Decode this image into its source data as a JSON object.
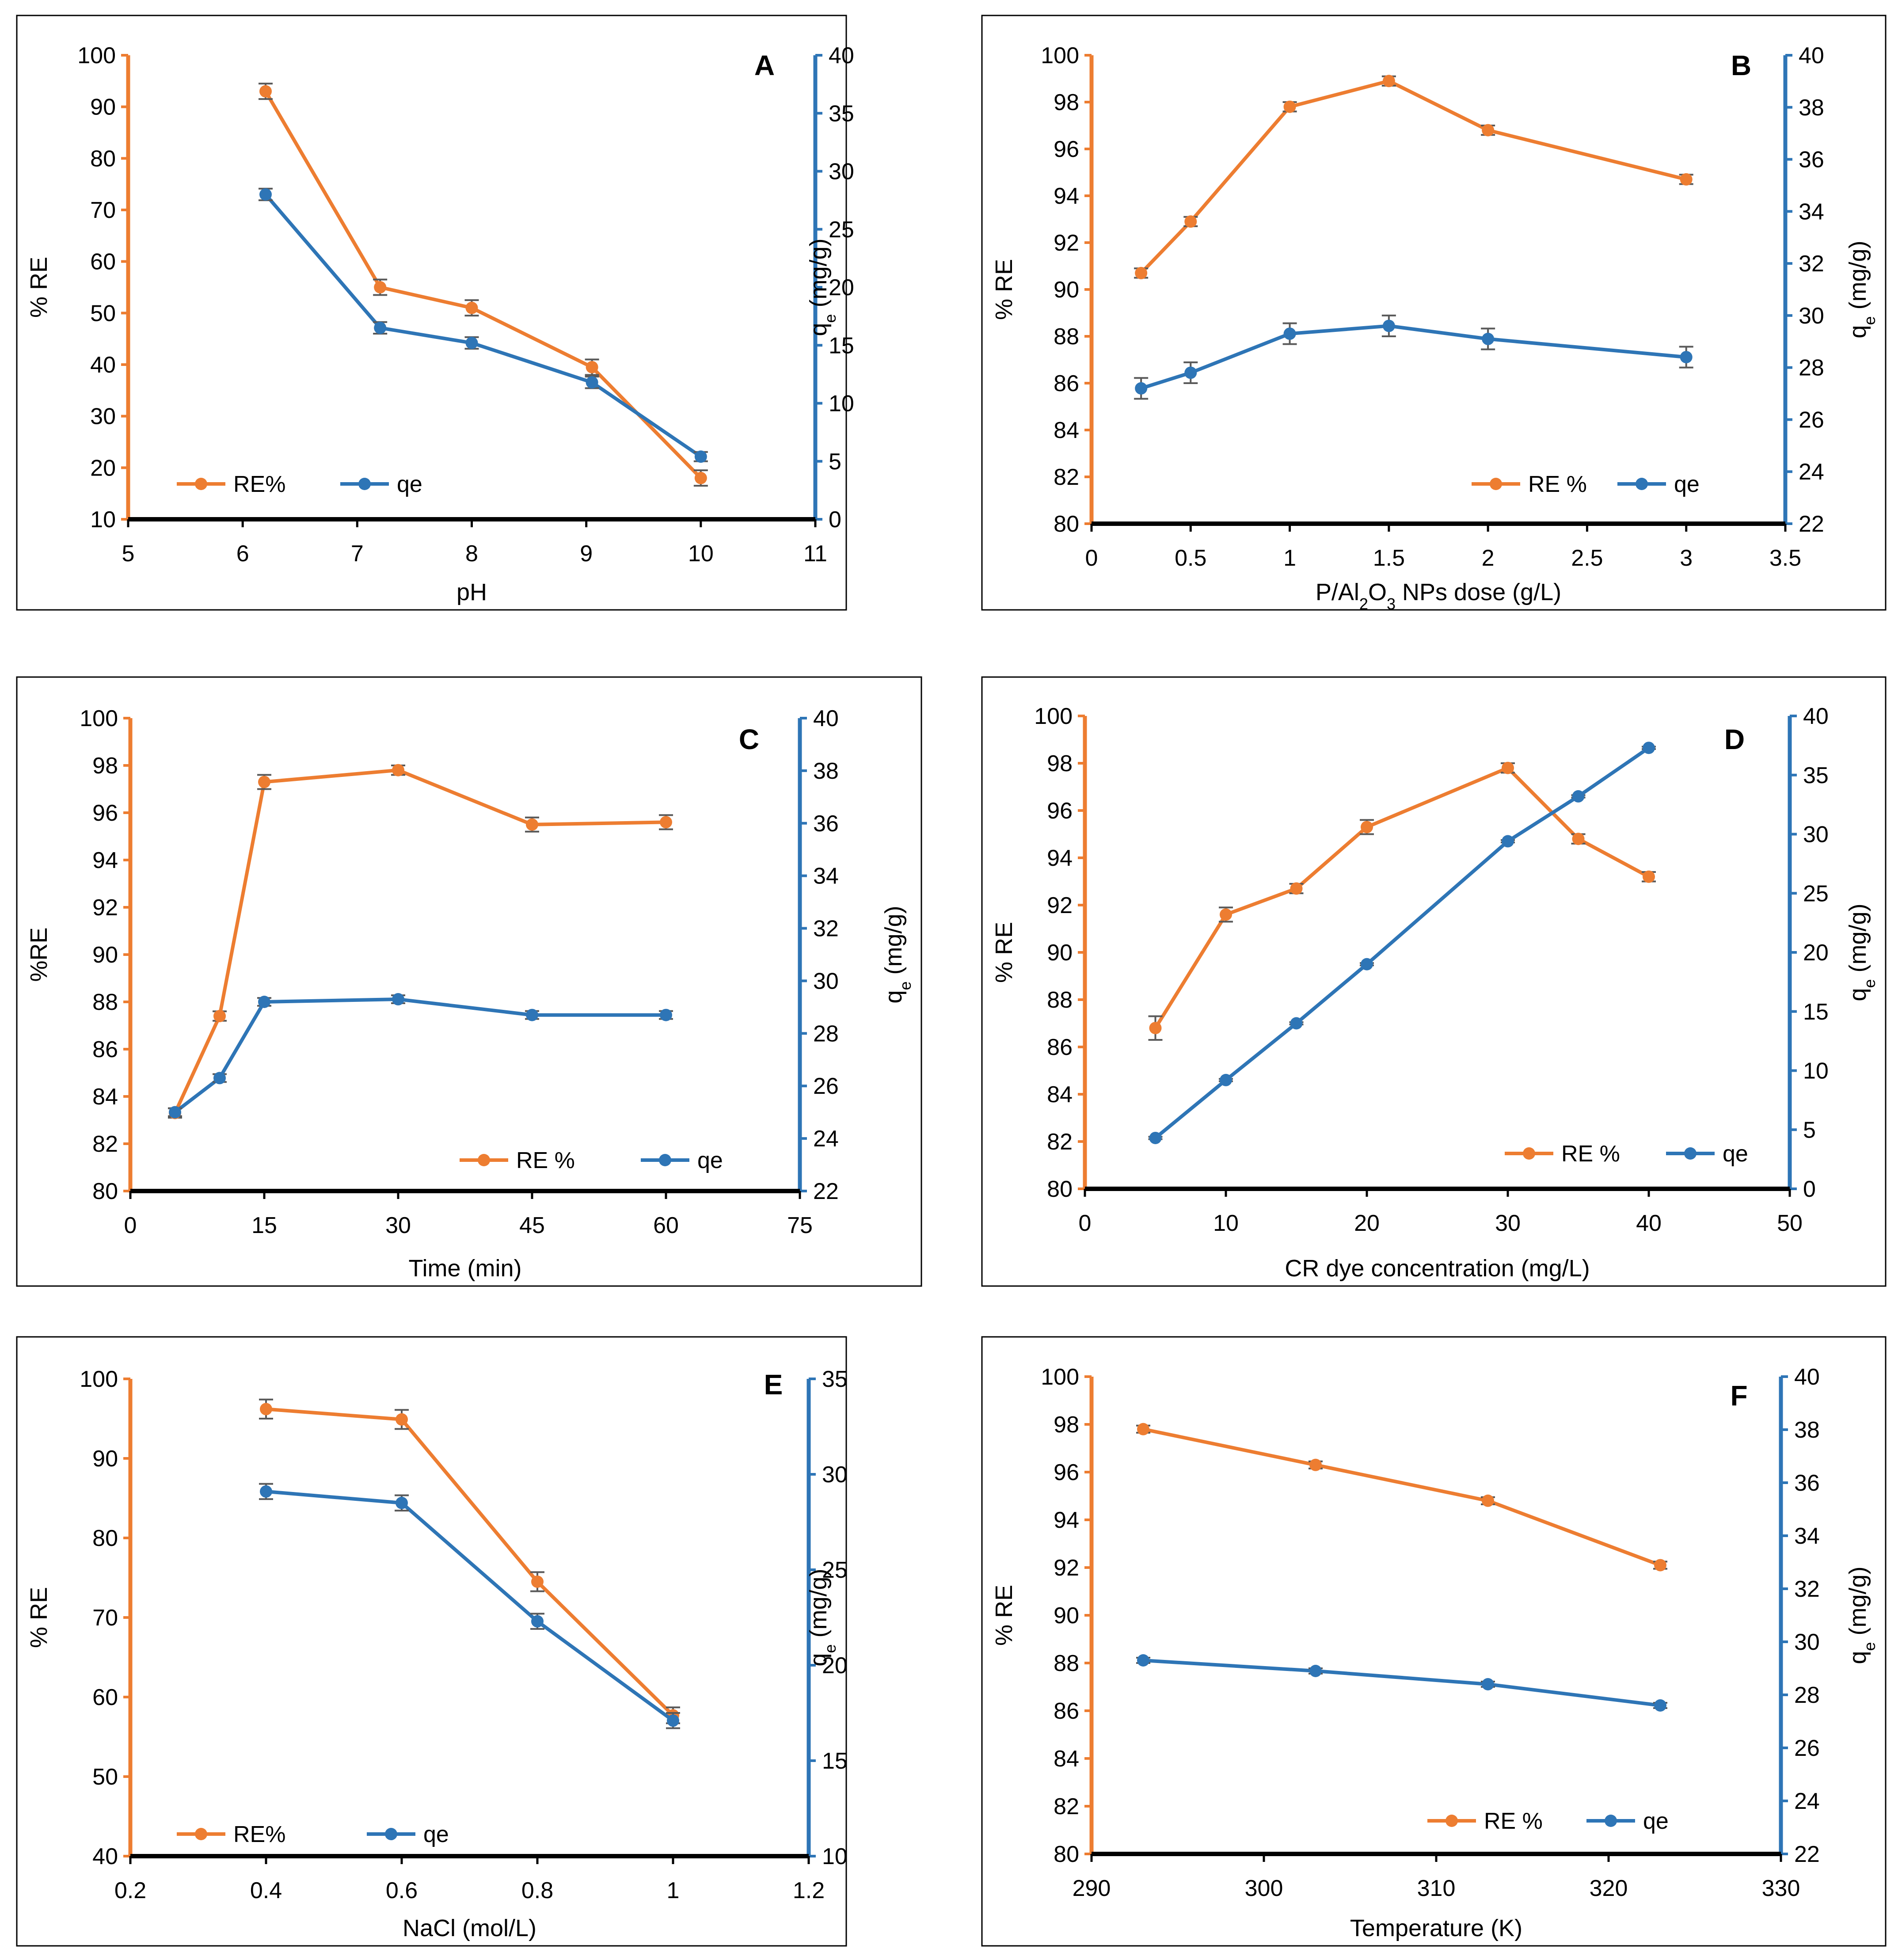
{
  "chart_data": [
    {
      "type": "line",
      "id": "A",
      "panel_label": "A",
      "title": "",
      "xlabel": "pH",
      "ylabel": "% RE",
      "y2label_main": "q",
      "y2label_sub": "e",
      "y2label_tail": " (mg/g)",
      "xlim": [
        5,
        11
      ],
      "xticks": [
        "5",
        "6",
        "7",
        "8",
        "9",
        "10",
        "11"
      ],
      "ylim": [
        10,
        100
      ],
      "yticks": [
        "10",
        "20",
        "30",
        "40",
        "50",
        "60",
        "70",
        "80",
        "90",
        "100"
      ],
      "y2lim": [
        0,
        40
      ],
      "y2ticks": [
        "0",
        "5",
        "10",
        "15",
        "20",
        "25",
        "30",
        "35",
        "40"
      ],
      "legend_position": "bottom-left",
      "series": [
        {
          "name": "RE%",
          "axis": "left",
          "color": "#ED7D31",
          "x": [
            6.2,
            7.2,
            8,
            9.05,
            10
          ],
          "values": [
            93,
            55,
            51,
            39.5,
            18
          ],
          "error": [
            1.5,
            1.5,
            1.5,
            1.5,
            1.5
          ]
        },
        {
          "name": "qe",
          "axis": "right",
          "color": "#2E75B6",
          "x": [
            6.2,
            7.2,
            8,
            9.05,
            10
          ],
          "values": [
            28,
            16.5,
            15.2,
            11.8,
            5.4
          ],
          "error": [
            0.5,
            0.5,
            0.5,
            0.5,
            0.4
          ]
        }
      ]
    },
    {
      "type": "line",
      "id": "B",
      "panel_label": "B",
      "title": "",
      "xlabel_pre": "P/Al",
      "xlabel_sub1": "2",
      "xlabel_mid": "O",
      "xlabel_sub2": "3",
      "xlabel_post": " NPs dose (g/L)",
      "ylabel": "% RE",
      "y2label_main": "q",
      "y2label_sub": "e",
      "y2label_tail": " (mg/g)",
      "xlim": [
        0,
        3.5
      ],
      "xticks": [
        "0",
        "0.5",
        "1",
        "1.5",
        "2",
        "2.5",
        "3",
        "3.5"
      ],
      "ylim": [
        80,
        100
      ],
      "yticks": [
        "80",
        "82",
        "84",
        "86",
        "88",
        "90",
        "92",
        "94",
        "96",
        "98",
        "100"
      ],
      "y2lim": [
        22,
        40
      ],
      "y2ticks": [
        "22",
        "24",
        "26",
        "28",
        "30",
        "32",
        "34",
        "36",
        "38",
        "40"
      ],
      "legend_position": "bottom-right",
      "series": [
        {
          "name": "RE %",
          "axis": "left",
          "color": "#ED7D31",
          "x": [
            0.25,
            0.5,
            1,
            1.5,
            2,
            3
          ],
          "values": [
            90.7,
            92.9,
            97.8,
            98.9,
            96.8,
            94.7
          ],
          "error": [
            0.2,
            0.2,
            0.2,
            0.2,
            0.2,
            0.2
          ]
        },
        {
          "name": "qe",
          "axis": "right",
          "color": "#2E75B6",
          "x": [
            0.25,
            0.5,
            1,
            1.5,
            2,
            3
          ],
          "values": [
            27.2,
            27.8,
            29.3,
            29.6,
            29.1,
            28.4
          ],
          "error": [
            0.4,
            0.4,
            0.4,
            0.4,
            0.4,
            0.4
          ]
        }
      ]
    },
    {
      "type": "line",
      "id": "C",
      "panel_label": "C",
      "title": "",
      "xlabel": "Time (min)",
      "ylabel": "%RE",
      "y2label_main": "q",
      "y2label_sub": "e",
      "y2label_tail": "  (mg/g)",
      "xlim": [
        0,
        75
      ],
      "xticks": [
        "0",
        "15",
        "30",
        "45",
        "60",
        "75"
      ],
      "ylim": [
        80,
        100
      ],
      "yticks": [
        "80",
        "82",
        "84",
        "86",
        "88",
        "90",
        "92",
        "94",
        "96",
        "98",
        "100"
      ],
      "y2lim": [
        22,
        40
      ],
      "y2ticks": [
        "22",
        "24",
        "26",
        "28",
        "30",
        "32",
        "34",
        "36",
        "38",
        "40"
      ],
      "legend_position": "bottom-right",
      "series": [
        {
          "name": "RE %",
          "axis": "left",
          "color": "#ED7D31",
          "x": [
            5,
            10,
            15,
            30,
            45,
            60
          ],
          "values": [
            83.3,
            87.4,
            97.3,
            97.8,
            95.5,
            95.6
          ],
          "error": [
            0.2,
            0.2,
            0.3,
            0.2,
            0.3,
            0.3
          ]
        },
        {
          "name": "qe",
          "axis": "right",
          "color": "#2E75B6",
          "x": [
            5,
            10,
            15,
            30,
            45,
            60
          ],
          "values": [
            25,
            26.3,
            29.2,
            29.3,
            28.7,
            28.7
          ],
          "error": [
            0.15,
            0.15,
            0.15,
            0.15,
            0.15,
            0.15
          ]
        }
      ]
    },
    {
      "type": "line",
      "id": "D",
      "panel_label": "D",
      "title": "",
      "xlabel": "CR dye concentration (mg/L)",
      "ylabel": "% RE",
      "y2label_main": "q",
      "y2label_sub": "e",
      "y2label_tail": " (mg/g)",
      "xlim": [
        0,
        50
      ],
      "xticks": [
        "0",
        "10",
        "20",
        "30",
        "40",
        "50"
      ],
      "ylim": [
        80,
        100
      ],
      "yticks": [
        "80",
        "82",
        "84",
        "86",
        "88",
        "90",
        "92",
        "94",
        "96",
        "98",
        "100"
      ],
      "y2lim": [
        0,
        40
      ],
      "y2ticks": [
        "0",
        "5",
        "10",
        "15",
        "20",
        "25",
        "30",
        "35",
        "40"
      ],
      "legend_position": "bottom-right",
      "series": [
        {
          "name": "RE %",
          "axis": "left",
          "color": "#ED7D31",
          "x": [
            5,
            10,
            15,
            20,
            30,
            35,
            40
          ],
          "values": [
            86.8,
            91.6,
            92.7,
            95.3,
            97.8,
            94.8,
            93.2
          ],
          "error": [
            0.5,
            0.3,
            0.2,
            0.3,
            0.2,
            0.2,
            0.2
          ]
        },
        {
          "name": "qe",
          "axis": "right",
          "color": "#2E75B6",
          "x": [
            5,
            10,
            15,
            20,
            30,
            35,
            40
          ],
          "values": [
            4.3,
            9.2,
            14,
            19,
            29.4,
            33.2,
            37.3
          ],
          "error": [
            0.1,
            0.1,
            0.1,
            0.1,
            0.1,
            0.1,
            0.1
          ]
        }
      ]
    },
    {
      "type": "line",
      "id": "E",
      "panel_label": "E",
      "title": "",
      "xlabel": "NaCl (mol/L)",
      "ylabel": "% RE",
      "y2label_main": "q",
      "y2label_sub": "e",
      "y2label_tail": " (mg/g)",
      "xlim": [
        0.2,
        1.2
      ],
      "xticks": [
        "0.2",
        "0.4",
        "0.6",
        "0.8",
        "1",
        "1.2"
      ],
      "ylim": [
        40,
        100
      ],
      "yticks": [
        "40",
        "50",
        "60",
        "70",
        "80",
        "90",
        "100"
      ],
      "y2lim": [
        10,
        35
      ],
      "y2ticks": [
        "10",
        "15",
        "20",
        "25",
        "30",
        "35"
      ],
      "legend_position": "bottom-left",
      "series": [
        {
          "name": "RE%",
          "axis": "left",
          "color": "#ED7D31",
          "x": [
            0.4,
            0.6,
            0.8,
            1
          ],
          "values": [
            96.2,
            94.9,
            74.5,
            57.7
          ],
          "error": [
            1.2,
            1.2,
            1.2,
            1.0
          ]
        },
        {
          "name": "qe",
          "axis": "right",
          "color": "#2E75B6",
          "x": [
            0.4,
            0.6,
            0.8,
            1
          ],
          "values": [
            29.1,
            28.5,
            22.3,
            17.1
          ],
          "error": [
            0.4,
            0.4,
            0.4,
            0.4
          ]
        }
      ]
    },
    {
      "type": "line",
      "id": "F",
      "panel_label": "F",
      "title": "",
      "xlabel": "Temperature (K)",
      "ylabel": "% RE",
      "y2label_main": "q",
      "y2label_sub": "e",
      "y2label_tail": " (mg/g)",
      "xlim": [
        290,
        330
      ],
      "xticks": [
        "290",
        "300",
        "310",
        "320",
        "330"
      ],
      "ylim": [
        80,
        100
      ],
      "yticks": [
        "80",
        "82",
        "84",
        "86",
        "88",
        "90",
        "92",
        "94",
        "96",
        "98",
        "100"
      ],
      "y2lim": [
        22,
        40
      ],
      "y2ticks": [
        "22",
        "24",
        "26",
        "28",
        "30",
        "32",
        "34",
        "36",
        "38",
        "40"
      ],
      "legend_position": "bottom-right",
      "series": [
        {
          "name": "RE %",
          "axis": "left",
          "color": "#ED7D31",
          "x": [
            293,
            303,
            313,
            323
          ],
          "values": [
            97.8,
            96.3,
            94.8,
            92.1
          ],
          "error": [
            0.15,
            0.15,
            0.15,
            0.15
          ]
        },
        {
          "name": "qe",
          "axis": "right",
          "color": "#2E75B6",
          "x": [
            293,
            303,
            313,
            323
          ],
          "values": [
            29.3,
            28.9,
            28.4,
            27.6
          ],
          "error": [
            0.1,
            0.1,
            0.1,
            0.1
          ]
        }
      ]
    }
  ]
}
